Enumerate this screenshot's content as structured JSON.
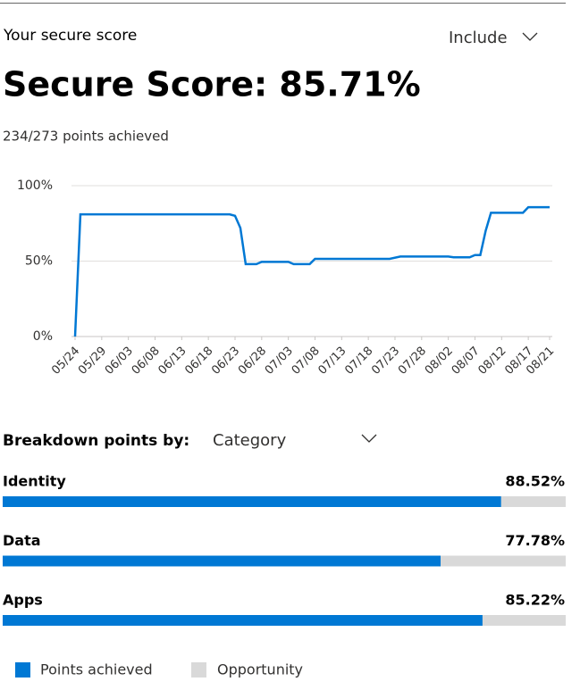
{
  "header": {
    "title": "Your secure score",
    "filter": "Include",
    "score": "Secure Score: 85.71%",
    "points": "234/273 points achieved"
  },
  "chart_data": {
    "type": "line",
    "x": [
      "05/24",
      "05/25",
      "06/22",
      "06/23",
      "06/24",
      "06/25",
      "06/27",
      "06/28",
      "07/03",
      "07/04",
      "07/07",
      "07/08",
      "07/22",
      "07/24",
      "08/02",
      "08/03",
      "08/06",
      "08/07",
      "08/08",
      "08/09",
      "08/10",
      "08/16",
      "08/17",
      "08/21"
    ],
    "series": [
      {
        "color": "#0078d4",
        "values": [
          0,
          81,
          81,
          80,
          72,
          48,
          48,
          49.5,
          49.5,
          48,
          48,
          51.5,
          51.5,
          53,
          53,
          52.5,
          52.5,
          54,
          54,
          70,
          82,
          82,
          85.7,
          85.7
        ]
      }
    ],
    "ylim": [
      0,
      100
    ],
    "yticks": [
      {
        "value": 0,
        "label": "0%"
      },
      {
        "value": 50,
        "label": "50%"
      },
      {
        "value": 100,
        "label": "100%"
      }
    ],
    "xticks": [
      "05/24",
      "05/29",
      "06/03",
      "06/08",
      "06/13",
      "06/18",
      "06/23",
      "06/28",
      "07/03",
      "07/08",
      "07/13",
      "07/18",
      "07/23",
      "07/28",
      "08/02",
      "08/07",
      "08/12",
      "08/17",
      "08/21"
    ],
    "grid": true
  },
  "breakdown": {
    "label": "Breakdown points by:",
    "selected": "Category",
    "xlim": [
      0,
      100
    ],
    "achieved_color": "#0078d4",
    "opportunity_color": "#d9d9d9",
    "items": [
      {
        "name": "Identity",
        "value": 88.52,
        "value_label": "88.52%"
      },
      {
        "name": "Data",
        "value": 77.78,
        "value_label": "77.78%"
      },
      {
        "name": "Apps",
        "value": 85.22,
        "value_label": "85.22%"
      }
    ]
  },
  "legend": {
    "achieved": "Points achieved",
    "opportunity": "Opportunity"
  }
}
